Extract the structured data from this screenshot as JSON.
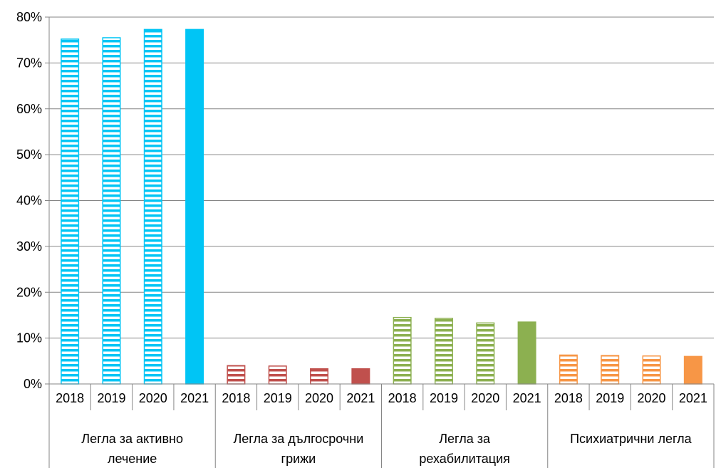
{
  "chart_data": {
    "type": "bar",
    "title": "",
    "xlabel": "",
    "ylabel": "",
    "ylim": [
      0,
      0.8
    ],
    "y_ticks": [
      "0%",
      "10%",
      "20%",
      "30%",
      "40%",
      "50%",
      "60%",
      "70%",
      "80%"
    ],
    "grid": true,
    "years": [
      "2018",
      "2019",
      "2020",
      "2021"
    ],
    "groups": [
      {
        "label": "Легла за активно лечение",
        "label_lines": [
          "Легла за активно",
          "лечение"
        ],
        "color": "#00C5F5",
        "values": [
          0.752,
          0.755,
          0.773,
          0.773
        ]
      },
      {
        "label": "Легла за дългосрочни грижи",
        "label_lines": [
          "Легла за дългосрочни",
          "грижи"
        ],
        "color": "#C0504D",
        "values": [
          0.04,
          0.039,
          0.033,
          0.033
        ]
      },
      {
        "label": "Легла за рехабилитация",
        "label_lines": [
          "Легла за",
          "рехабилитация"
        ],
        "color": "#8CB050",
        "values": [
          0.145,
          0.143,
          0.133,
          0.135
        ]
      },
      {
        "label": "Психиатрични легла",
        "label_lines": [
          "Психиатрични легла"
        ],
        "color": "#F79646",
        "values": [
          0.063,
          0.062,
          0.061,
          0.06
        ]
      }
    ],
    "pattern": "2018-2020 horizontal stripes, 2021 solid"
  }
}
